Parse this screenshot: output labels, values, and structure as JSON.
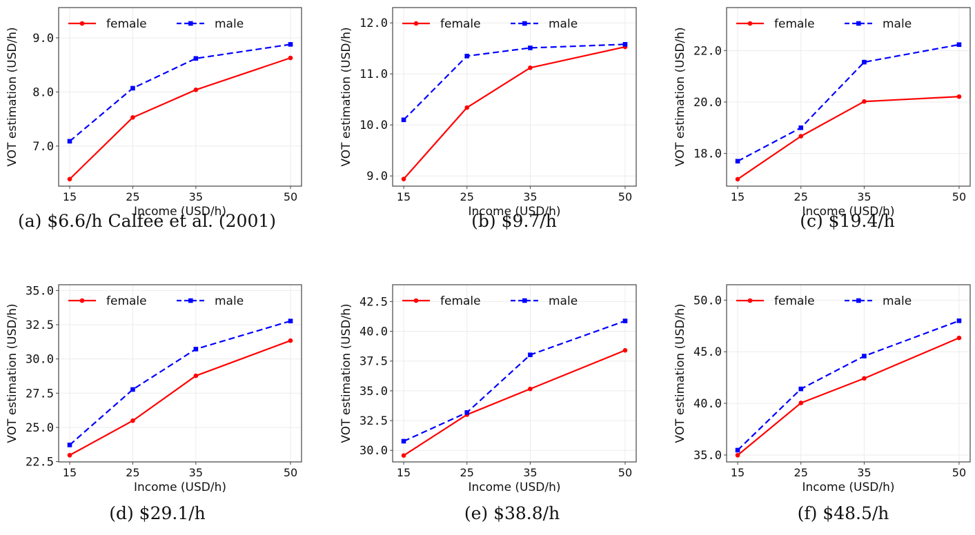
{
  "figure": {
    "captions": [
      "(a) $6.6/h Calfee et al. (2001)",
      "(b) $9.7/h",
      "(c) $19.4/h",
      "(d) $29.1/h",
      "(e) $38.8/h",
      "(f) $48.5/h"
    ]
  },
  "colors": {
    "female": "#ff0000",
    "male": "#0000ff",
    "frame": "#444444",
    "grid": "#ebebeb"
  },
  "chart_data": [
    {
      "type": "line",
      "title": "(a) $6.6/h Calfee et al. (2001)",
      "xlabel": "Income (USD/h)",
      "ylabel": "VOT estimation (USD/h)",
      "x": [
        15,
        25,
        35,
        50
      ],
      "xticks": [
        "15",
        "25",
        "35",
        "50"
      ],
      "yticks": [
        7.0,
        8.0,
        9.0
      ],
      "ytick_labels": [
        "7.0",
        "8.0",
        "9.0"
      ],
      "xlim": [
        13.25,
        51.75
      ],
      "ylim": [
        6.26,
        9.56
      ],
      "grid": true,
      "legend": "top-left",
      "series": [
        {
          "name": "female",
          "style": "solid",
          "marker": "circle",
          "values": [
            6.39,
            7.53,
            8.04,
            8.63
          ]
        },
        {
          "name": "male",
          "style": "dashed",
          "marker": "square",
          "values": [
            7.09,
            8.07,
            8.62,
            8.88
          ]
        }
      ]
    },
    {
      "type": "line",
      "title": "(b) $9.7/h",
      "xlabel": "Income (USD/h)",
      "ylabel": "VOT estimation (USD/h)",
      "x": [
        15,
        25,
        35,
        50
      ],
      "xticks": [
        "15",
        "25",
        "35",
        "50"
      ],
      "yticks": [
        9.0,
        10.0,
        11.0,
        12.0
      ],
      "ytick_labels": [
        "9.0",
        "10.0",
        "11.0",
        "12.0"
      ],
      "xlim": [
        13.25,
        51.75
      ],
      "ylim": [
        8.8,
        12.3
      ],
      "grid": true,
      "legend": "top-left",
      "series": [
        {
          "name": "female",
          "style": "solid",
          "marker": "circle",
          "values": [
            8.94,
            10.34,
            11.12,
            11.53
          ]
        },
        {
          "name": "male",
          "style": "dashed",
          "marker": "square",
          "values": [
            10.1,
            11.35,
            11.51,
            11.58
          ]
        }
      ]
    },
    {
      "type": "line",
      "title": "(c) $19.4/h",
      "xlabel": "Income (USD/h)",
      "ylabel": "VOT estimation (USD/h)",
      "x": [
        15,
        25,
        35,
        50
      ],
      "xticks": [
        "15",
        "25",
        "35",
        "50"
      ],
      "yticks": [
        18.0,
        20.0,
        22.0
      ],
      "ytick_labels": [
        "18.0",
        "20.0",
        "22.0"
      ],
      "xlim": [
        13.25,
        51.75
      ],
      "ylim": [
        16.73,
        23.67
      ],
      "grid": true,
      "legend": "top-left",
      "series": [
        {
          "name": "female",
          "style": "solid",
          "marker": "circle",
          "values": [
            17.0,
            18.67,
            20.02,
            20.21
          ]
        },
        {
          "name": "male",
          "style": "dashed",
          "marker": "square",
          "values": [
            17.7,
            19.0,
            21.55,
            22.23
          ]
        }
      ]
    },
    {
      "type": "line",
      "title": "(d) $29.1/h",
      "xlabel": "Income (USD/h)",
      "ylabel": "VOT estimation (USD/h)",
      "x": [
        15,
        25,
        35,
        50
      ],
      "xticks": [
        "15",
        "25",
        "35",
        "50"
      ],
      "yticks": [
        22.5,
        25.0,
        27.5,
        30.0,
        32.5,
        35.0
      ],
      "ytick_labels": [
        "22.5",
        "25.0",
        "27.5",
        "30.0",
        "32.5",
        "35.0"
      ],
      "xlim": [
        13.25,
        51.75
      ],
      "ylim": [
        22.48,
        35.42
      ],
      "grid": true,
      "legend": "top-left",
      "series": [
        {
          "name": "female",
          "style": "solid",
          "marker": "circle",
          "values": [
            22.97,
            25.49,
            28.77,
            31.34
          ]
        },
        {
          "name": "male",
          "style": "dashed",
          "marker": "square",
          "values": [
            23.72,
            27.77,
            30.72,
            32.77
          ]
        }
      ]
    },
    {
      "type": "line",
      "title": "(e) $38.8/h",
      "xlabel": "Income (USD/h)",
      "ylabel": "VOT estimation (USD/h)",
      "x": [
        15,
        25,
        35,
        50
      ],
      "xticks": [
        "15",
        "25",
        "35",
        "50"
      ],
      "yticks": [
        30.0,
        32.5,
        35.0,
        37.5,
        40.0,
        42.5
      ],
      "ytick_labels": [
        "30.0",
        "32.5",
        "35.0",
        "37.5",
        "40.0",
        "42.5"
      ],
      "xlim": [
        13.25,
        51.75
      ],
      "ylim": [
        29.03,
        43.91
      ],
      "grid": true,
      "legend": "top-left",
      "series": [
        {
          "name": "female",
          "style": "solid",
          "marker": "circle",
          "values": [
            29.57,
            33.0,
            35.16,
            38.4
          ]
        },
        {
          "name": "male",
          "style": "dashed",
          "marker": "square",
          "values": [
            30.77,
            33.18,
            38.02,
            40.87
          ]
        }
      ]
    },
    {
      "type": "line",
      "title": "(f) $48.5/h",
      "xlabel": "Income (USD/h)",
      "ylabel": "VOT estimation (USD/h)",
      "x": [
        15,
        25,
        35,
        50
      ],
      "xticks": [
        "15",
        "25",
        "35",
        "50"
      ],
      "yticks": [
        35.0,
        40.0,
        45.0,
        50.0
      ],
      "ytick_labels": [
        "35.0",
        "40.0",
        "45.0",
        "50.0"
      ],
      "xlim": [
        13.25,
        51.75
      ],
      "ylim": [
        34.33,
        51.49
      ],
      "grid": true,
      "legend": "top-left",
      "series": [
        {
          "name": "female",
          "style": "solid",
          "marker": "circle",
          "values": [
            34.98,
            40.04,
            42.42,
            46.34
          ]
        },
        {
          "name": "male",
          "style": "dashed",
          "marker": "square",
          "values": [
            35.47,
            41.4,
            44.58,
            48.0
          ]
        }
      ]
    }
  ]
}
